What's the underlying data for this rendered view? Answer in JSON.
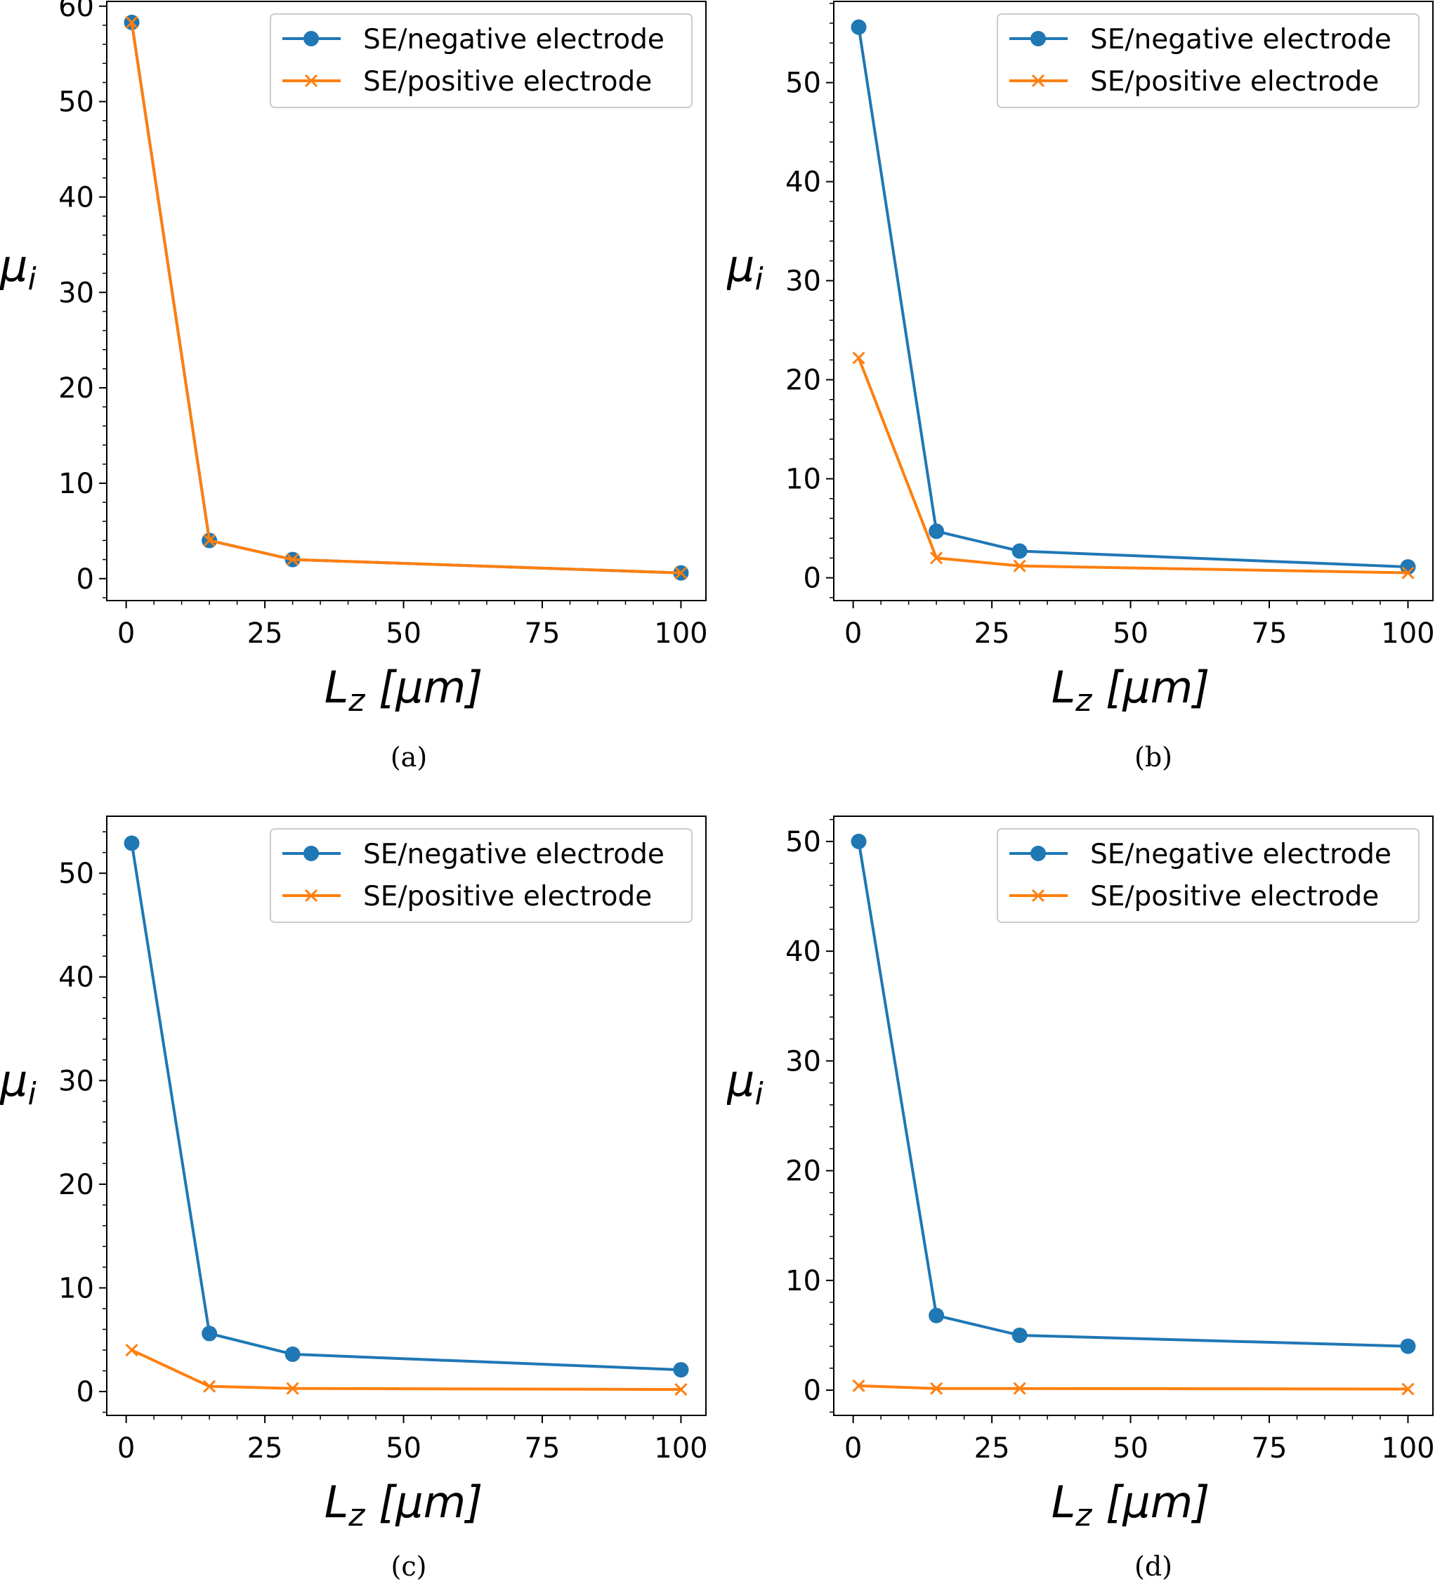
{
  "colors": {
    "negative": "#1f77b4",
    "positive": "#ff7f0e",
    "axis": "#000000",
    "legend_border": "#cccccc"
  },
  "chart_data": [
    {
      "type": "line",
      "caption": "(a)",
      "xlabel": "L_z [μm]",
      "ylabel": "μ_i",
      "x": [
        1,
        15,
        30,
        100
      ],
      "xticks": [
        0,
        25,
        50,
        75,
        100
      ],
      "yticks": [
        0,
        10,
        20,
        30,
        40,
        50,
        60
      ],
      "xlim": [
        -3.5,
        104.5
      ],
      "ylim": [
        -2.3,
        60.5
      ],
      "legend_position": "upper right",
      "series": [
        {
          "name": "SE/negative electrode",
          "marker": "circle",
          "color": "#1f77b4",
          "values": [
            58.3,
            4.0,
            2.0,
            0.6
          ]
        },
        {
          "name": "SE/positive electrode",
          "marker": "x",
          "color": "#ff7f0e",
          "values": [
            58.3,
            4.0,
            2.0,
            0.6
          ]
        }
      ]
    },
    {
      "type": "line",
      "caption": "(b)",
      "xlabel": "L_z [μm]",
      "ylabel": "μ_i",
      "x": [
        1,
        15,
        30,
        100
      ],
      "xticks": [
        0,
        25,
        50,
        75,
        100
      ],
      "yticks": [
        0,
        10,
        20,
        30,
        40,
        50
      ],
      "xlim": [
        -3.5,
        104.5
      ],
      "ylim": [
        -2.3,
        58.2
      ],
      "legend_position": "upper right",
      "series": [
        {
          "name": "SE/negative electrode",
          "marker": "circle",
          "color": "#1f77b4",
          "values": [
            55.6,
            4.7,
            2.7,
            1.1
          ]
        },
        {
          "name": "SE/positive electrode",
          "marker": "x",
          "color": "#ff7f0e",
          "values": [
            22.2,
            2.0,
            1.2,
            0.5
          ]
        }
      ]
    },
    {
      "type": "line",
      "caption": "(c)",
      "xlabel": "L_z [μm]",
      "ylabel": "μ_i",
      "x": [
        1,
        15,
        30,
        100
      ],
      "xticks": [
        0,
        25,
        50,
        75,
        100
      ],
      "yticks": [
        0,
        10,
        20,
        30,
        40,
        50
      ],
      "xlim": [
        -3.5,
        104.5
      ],
      "ylim": [
        -2.3,
        55.5
      ],
      "legend_position": "upper right",
      "series": [
        {
          "name": "SE/negative electrode",
          "marker": "circle",
          "color": "#1f77b4",
          "values": [
            52.9,
            5.6,
            3.6,
            2.1
          ]
        },
        {
          "name": "SE/positive electrode",
          "marker": "x",
          "color": "#ff7f0e",
          "values": [
            4.0,
            0.5,
            0.3,
            0.2
          ]
        }
      ]
    },
    {
      "type": "line",
      "caption": "(d)",
      "xlabel": "L_z [μm]",
      "ylabel": "μ_i",
      "x": [
        1,
        15,
        30,
        100
      ],
      "xticks": [
        0,
        25,
        50,
        75,
        100
      ],
      "yticks": [
        0,
        10,
        20,
        30,
        40,
        50
      ],
      "xlim": [
        -3.5,
        104.5
      ],
      "ylim": [
        -2.3,
        52.3
      ],
      "legend_position": "upper right",
      "series": [
        {
          "name": "SE/negative electrode",
          "marker": "circle",
          "color": "#1f77b4",
          "values": [
            50.0,
            6.8,
            5.0,
            4.0
          ]
        },
        {
          "name": "SE/positive electrode",
          "marker": "x",
          "color": "#ff7f0e",
          "values": [
            0.4,
            0.15,
            0.15,
            0.1
          ]
        }
      ]
    }
  ]
}
